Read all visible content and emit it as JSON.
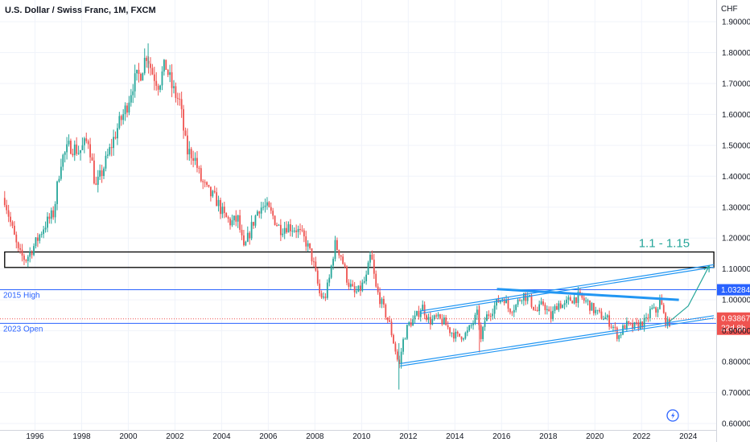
{
  "chart_title": "U.S. Dollar / Swiss Franc, 1M, FXCM",
  "chart_data": {
    "type": "candlestick",
    "title": "U.S. Dollar / Swiss Franc, 1M, FXCM",
    "currency": "CHF",
    "y_ticks": [
      "1.90000",
      "1.80000",
      "1.70000",
      "1.60000",
      "1.50000",
      "1.40000",
      "1.30000",
      "1.20000",
      "1.10000",
      "1.00000",
      "0.90000",
      "0.80000",
      "0.70000",
      "0.60000"
    ],
    "y_tick_values": [
      1.9,
      1.8,
      1.7,
      1.6,
      1.5,
      1.4,
      1.3,
      1.2,
      1.1,
      1.0,
      0.9,
      0.8,
      0.7,
      0.6
    ],
    "x_ticks": [
      "1996",
      "1998",
      "2000",
      "2002",
      "2004",
      "2006",
      "2008",
      "2010",
      "2012",
      "2014",
      "2016",
      "2018",
      "2020",
      "2022",
      "2024"
    ],
    "x_tick_values": [
      1996,
      1998,
      2000,
      2002,
      2004,
      2006,
      2008,
      2010,
      2012,
      2014,
      2016,
      2018,
      2020,
      2022,
      2024
    ],
    "xlim": [
      1994.5,
      2025.2
    ],
    "ylim": [
      0.6,
      1.95
    ],
    "colors": {
      "up": "#26a69a",
      "down": "#ef5350",
      "trend": "#2196f3",
      "level": "#2962ff",
      "arrow": "#26a69a"
    },
    "price_path": [
      [
        1994.7,
        1.33
      ],
      [
        1994.95,
        1.25
      ],
      [
        1995.3,
        1.15
      ],
      [
        1995.6,
        1.13
      ],
      [
        1996.0,
        1.18
      ],
      [
        1996.4,
        1.24
      ],
      [
        1996.8,
        1.28
      ],
      [
        1997.1,
        1.45
      ],
      [
        1997.5,
        1.5
      ],
      [
        1997.9,
        1.48
      ],
      [
        1998.3,
        1.52
      ],
      [
        1998.6,
        1.36
      ],
      [
        1998.8,
        1.4
      ],
      [
        1999.1,
        1.46
      ],
      [
        1999.5,
        1.55
      ],
      [
        1999.9,
        1.62
      ],
      [
        2000.2,
        1.7
      ],
      [
        2000.5,
        1.73
      ],
      [
        2000.8,
        1.8
      ],
      [
        2001.0,
        1.74
      ],
      [
        2001.3,
        1.7
      ],
      [
        2001.6,
        1.76
      ],
      [
        2001.9,
        1.68
      ],
      [
        2002.2,
        1.64
      ],
      [
        2002.5,
        1.48
      ],
      [
        2002.8,
        1.47
      ],
      [
        2003.1,
        1.39
      ],
      [
        2003.4,
        1.35
      ],
      [
        2003.8,
        1.32
      ],
      [
        2004.1,
        1.27
      ],
      [
        2004.4,
        1.25
      ],
      [
        2004.7,
        1.26
      ],
      [
        2004.95,
        1.16
      ],
      [
        2005.3,
        1.24
      ],
      [
        2005.6,
        1.3
      ],
      [
        2005.9,
        1.3
      ],
      [
        2006.2,
        1.27
      ],
      [
        2006.5,
        1.23
      ],
      [
        2006.8,
        1.24
      ],
      [
        2007.2,
        1.23
      ],
      [
        2007.6,
        1.19
      ],
      [
        2007.9,
        1.13
      ],
      [
        2008.2,
        1.02
      ],
      [
        2008.4,
        1.0
      ],
      [
        2008.6,
        1.06
      ],
      [
        2008.85,
        1.18
      ],
      [
        2009.1,
        1.15
      ],
      [
        2009.4,
        1.06
      ],
      [
        2009.7,
        1.02
      ],
      [
        2009.9,
        1.03
      ],
      [
        2010.2,
        1.07
      ],
      [
        2010.4,
        1.15
      ],
      [
        2010.6,
        1.04
      ],
      [
        2010.9,
        0.98
      ],
      [
        2011.2,
        0.92
      ],
      [
        2011.5,
        0.82
      ],
      [
        2011.6,
        0.78
      ],
      [
        2011.75,
        0.86
      ],
      [
        2012.0,
        0.92
      ],
      [
        2012.3,
        0.94
      ],
      [
        2012.6,
        0.98
      ],
      [
        2012.9,
        0.93
      ],
      [
        2013.2,
        0.94
      ],
      [
        2013.5,
        0.93
      ],
      [
        2013.8,
        0.9
      ],
      [
        2014.1,
        0.88
      ],
      [
        2014.5,
        0.89
      ],
      [
        2014.8,
        0.93
      ],
      [
        2015.0,
        0.96
      ],
      [
        2015.1,
        0.86
      ],
      [
        2015.3,
        0.94
      ],
      [
        2015.6,
        0.97
      ],
      [
        2015.9,
        1.0
      ],
      [
        2016.1,
        1.01
      ],
      [
        2016.3,
        0.97
      ],
      [
        2016.6,
        0.98
      ],
      [
        2016.9,
        1.02
      ],
      [
        2017.2,
        1.0
      ],
      [
        2017.5,
        0.96
      ],
      [
        2017.8,
        0.99
      ],
      [
        2018.1,
        0.94
      ],
      [
        2018.4,
        0.99
      ],
      [
        2018.7,
        0.98
      ],
      [
        2018.9,
        1.0
      ],
      [
        2019.3,
        1.01
      ],
      [
        2019.7,
        0.99
      ],
      [
        2019.9,
        0.97
      ],
      [
        2020.2,
        0.95
      ],
      [
        2020.5,
        0.94
      ],
      [
        2020.8,
        0.91
      ],
      [
        2021.0,
        0.88
      ],
      [
        2021.3,
        0.92
      ],
      [
        2021.6,
        0.91
      ],
      [
        2021.9,
        0.92
      ],
      [
        2022.2,
        0.93
      ],
      [
        2022.4,
        0.97
      ],
      [
        2022.6,
        0.96
      ],
      [
        2022.8,
        1.0
      ],
      [
        2022.95,
        0.95
      ],
      [
        2023.1,
        0.92
      ],
      [
        2023.25,
        0.935
      ]
    ],
    "annotations": {
      "resistance_zone": {
        "label": "1.1 - 1.15",
        "y_bottom": 1.105,
        "y_top": 1.155,
        "x_start": 1994.7,
        "x_end": 2025.1
      },
      "levels": [
        {
          "label": "2015 High",
          "value": 1.03284,
          "value_label": "1.03284"
        },
        {
          "label": "2023 Open",
          "value": 0.92415,
          "value_label": "0.92415"
        }
      ],
      "last_price": {
        "value": 0.93867,
        "value_label": "0.93867",
        "countdown": "22d 8h"
      },
      "upper_channel": [
        [
          2012.5,
          0.96
        ],
        [
          2025.1,
          1.11
        ]
      ],
      "lower_channel": [
        [
          2011.65,
          0.79
        ],
        [
          2025.1,
          0.945
        ]
      ],
      "inner_resistance": [
        [
          2015.8,
          1.035
        ],
        [
          2023.6,
          1.0
        ]
      ],
      "projection_arrow": [
        [
          2023.2,
          0.93
        ],
        [
          2024.0,
          0.98
        ],
        [
          2024.9,
          1.11
        ]
      ]
    }
  }
}
